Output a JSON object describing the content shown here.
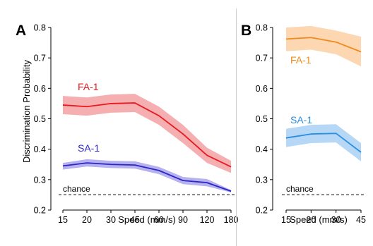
{
  "chart_data": [
    {
      "panel": "A",
      "type": "line",
      "xlabel": "Speed (mm/s)",
      "ylabel": "Discrimination Probability",
      "x": [
        15,
        20,
        30,
        45,
        60,
        90,
        120,
        180
      ],
      "x_ticks": [
        "15",
        "20",
        "30",
        "45",
        "60",
        "90",
        "120",
        "180"
      ],
      "ylim": [
        0.2,
        0.8
      ],
      "y_ticks": [
        "0.2",
        "0.3",
        "0.4",
        "0.5",
        "0.6",
        "0.7",
        "0.8"
      ],
      "grid": false,
      "series": [
        {
          "name": "FA-1",
          "color": "#e8191f",
          "band_color": "#f3a1a3",
          "values": [
            0.545,
            0.54,
            0.55,
            0.552,
            0.51,
            0.45,
            0.38,
            0.342
          ],
          "upper": [
            0.575,
            0.57,
            0.58,
            0.582,
            0.54,
            0.48,
            0.405,
            0.362
          ],
          "lower": [
            0.515,
            0.51,
            0.52,
            0.522,
            0.48,
            0.42,
            0.355,
            0.322
          ]
        },
        {
          "name": "SA-1",
          "color": "#2b25c9",
          "band_color": "#a9a5ea",
          "values": [
            0.345,
            0.355,
            0.35,
            0.348,
            0.33,
            0.297,
            0.29,
            0.262
          ],
          "upper": [
            0.355,
            0.367,
            0.362,
            0.36,
            0.342,
            0.309,
            0.302,
            0.266
          ],
          "lower": [
            0.333,
            0.343,
            0.338,
            0.336,
            0.318,
            0.285,
            0.278,
            0.258
          ]
        }
      ],
      "reference_line": {
        "label": "chance",
        "y": 0.25
      }
    },
    {
      "panel": "B",
      "type": "line",
      "xlabel": "Speed (mm/s)",
      "x": [
        15,
        20,
        30,
        45
      ],
      "x_ticks": [
        "15",
        "20",
        "30",
        "45"
      ],
      "ylim": [
        0.2,
        0.8
      ],
      "y_ticks": [
        "0.2",
        "0.3",
        "0.4",
        "0.5",
        "0.6",
        "0.7",
        "0.8"
      ],
      "grid": false,
      "series": [
        {
          "name": "FA-1",
          "color": "#f08a1c",
          "band_color": "#fbd0a4",
          "values": [
            0.762,
            0.767,
            0.752,
            0.72
          ],
          "upper": [
            0.8,
            0.805,
            0.79,
            0.77
          ],
          "lower": [
            0.722,
            0.727,
            0.712,
            0.672
          ]
        },
        {
          "name": "SA-1",
          "color": "#2a8ee0",
          "band_color": "#a9d0f3",
          "values": [
            0.437,
            0.45,
            0.452,
            0.39
          ],
          "upper": [
            0.467,
            0.48,
            0.482,
            0.42
          ],
          "lower": [
            0.407,
            0.42,
            0.422,
            0.36
          ]
        }
      ],
      "reference_line": {
        "label": "chance",
        "y": 0.25
      }
    }
  ]
}
